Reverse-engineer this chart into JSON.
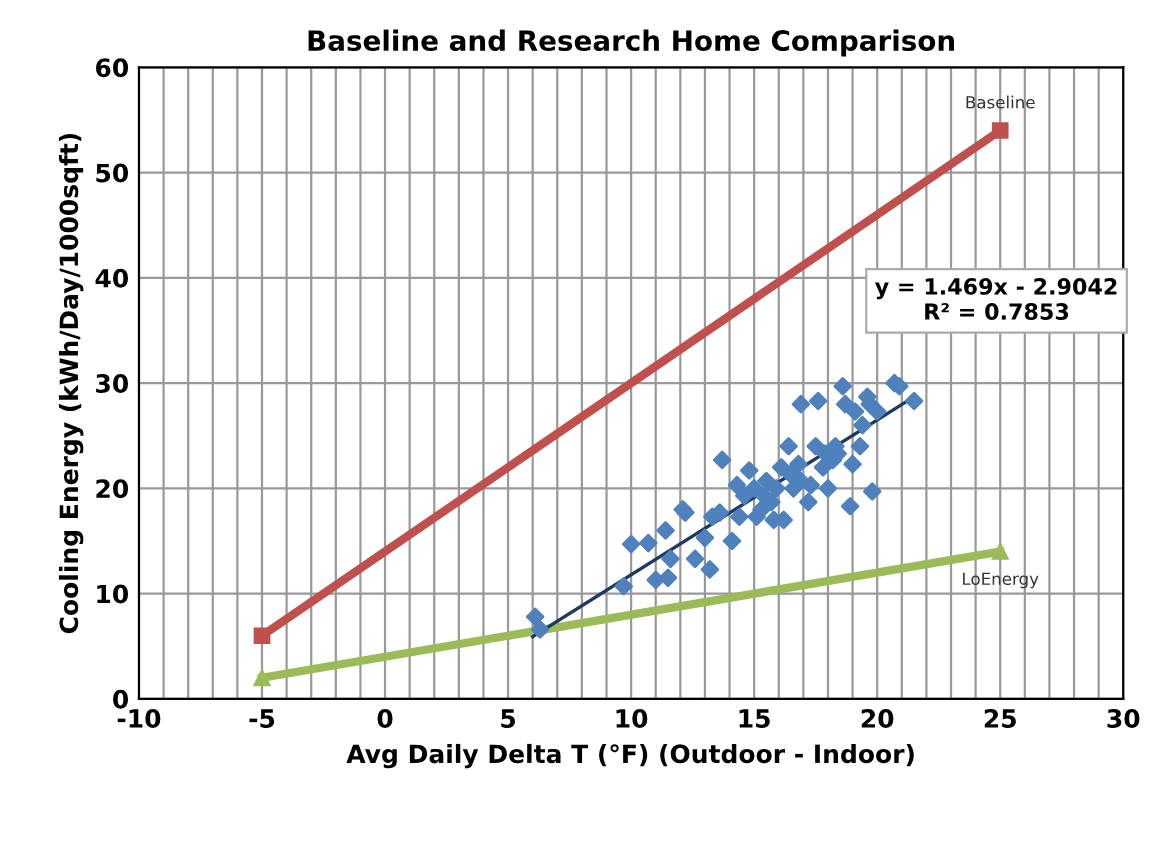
{
  "chart_data": {
    "type": "scatter",
    "title": "Baseline and Research Home Comparison",
    "xlabel": "Avg Daily Delta T (°F) (Outdoor - Indoor)",
    "ylabel": "Cooling Energy (kWh/Day/1000sqft)",
    "xlim": [
      -10,
      30
    ],
    "ylim": [
      0,
      60
    ],
    "xticks": [
      -10,
      {
        "value": -9,
        "label": null
      },
      {
        "value": -8,
        "label": null
      },
      {
        "value": -7,
        "label": null
      },
      {
        "value": -6,
        "label": null
      },
      -5,
      {
        "value": -4,
        "label": null
      },
      {
        "value": -3,
        "label": null
      },
      {
        "value": -2,
        "label": null
      },
      {
        "value": -1,
        "label": null
      },
      0,
      {
        "value": 1,
        "label": null
      },
      {
        "value": 2,
        "label": null
      },
      {
        "value": 3,
        "label": null
      },
      {
        "value": 4,
        "label": null
      },
      5,
      {
        "value": 6,
        "label": null
      },
      {
        "value": 7,
        "label": null
      },
      {
        "value": 8,
        "label": null
      },
      {
        "value": 9,
        "label": null
      },
      10,
      {
        "value": 11,
        "label": null
      },
      {
        "value": 12,
        "label": null
      },
      {
        "value": 13,
        "label": null
      },
      {
        "value": 14,
        "label": null
      },
      15,
      {
        "value": 16,
        "label": null
      },
      {
        "value": 17,
        "label": null
      },
      {
        "value": 18,
        "label": null
      },
      {
        "value": 19,
        "label": null
      },
      20,
      {
        "value": 21,
        "label": null
      },
      {
        "value": 22,
        "label": null
      },
      {
        "value": 23,
        "label": null
      },
      {
        "value": 24,
        "label": null
      },
      25,
      {
        "value": 26,
        "label": null
      },
      {
        "value": 27,
        "label": null
      },
      {
        "value": 28,
        "label": null
      },
      {
        "value": 29,
        "label": null
      },
      30
    ],
    "yticks": [
      0,
      10,
      20,
      30,
      40,
      50,
      60
    ],
    "grid": true,
    "legend": false,
    "series": [
      {
        "name": "Baseline",
        "type": "line",
        "color": "#c0504d",
        "marker": "square",
        "x": [
          -5,
          25
        ],
        "values": [
          6,
          54
        ]
      },
      {
        "name": "LoEnergy",
        "type": "line",
        "color": "#9bbb59",
        "marker": "triangle",
        "x": [
          -5,
          25
        ],
        "values": [
          2,
          14
        ]
      },
      {
        "color": "#4f81bd",
        "marker": "diamond",
        "x": [
          6.1,
          6.3,
          9.7,
          10.0,
          10.7,
          11.0,
          11.5,
          11.4,
          11.6,
          12.1,
          12.2,
          12.6,
          13.0,
          13.2,
          13.3,
          13.6,
          13.7,
          14.1,
          14.3,
          14.4,
          14.6,
          14.8,
          15.0,
          15.1,
          15.3,
          15.4,
          15.5,
          15.7,
          15.8,
          15.9,
          16.1,
          16.2,
          16.4,
          16.5,
          16.6,
          16.8,
          16.9,
          16.9,
          17.2,
          17.3,
          17.5,
          17.6,
          17.8,
          17.9,
          18.0,
          18.2,
          18.3,
          18.4,
          18.6,
          18.7,
          18.9,
          19.0,
          19.1,
          19.3,
          19.4,
          19.6,
          19.7,
          19.8,
          20.0,
          20.7,
          20.9,
          21.5
        ],
        "values": [
          7.8,
          6.6,
          10.7,
          14.7,
          14.8,
          11.3,
          11.5,
          16.0,
          13.3,
          18.0,
          17.7,
          13.3,
          15.3,
          12.3,
          17.3,
          17.7,
          22.7,
          15.0,
          20.3,
          17.3,
          19.3,
          21.7,
          20.0,
          17.3,
          18.0,
          19.3,
          20.7,
          18.7,
          17.0,
          20.0,
          22.0,
          17.0,
          24.0,
          21.3,
          20.0,
          22.3,
          28.0,
          20.7,
          18.7,
          20.3,
          24.0,
          28.3,
          22.0,
          23.3,
          20.0,
          22.7,
          24.0,
          23.3,
          29.7,
          28.0,
          18.3,
          22.3,
          27.3,
          24.0,
          26.0,
          28.7,
          28.0,
          19.7,
          27.3,
          30.0,
          29.7,
          28.3
        ]
      },
      {
        "type": "line",
        "color": "#1f3864",
        "marker": "none",
        "x": [
          6,
          21.5
        ],
        "values": [
          5.9,
          28.7
        ]
      }
    ],
    "annotations": [
      "y = 1.469x - 2.9042\nR² = 0.7853"
    ]
  }
}
